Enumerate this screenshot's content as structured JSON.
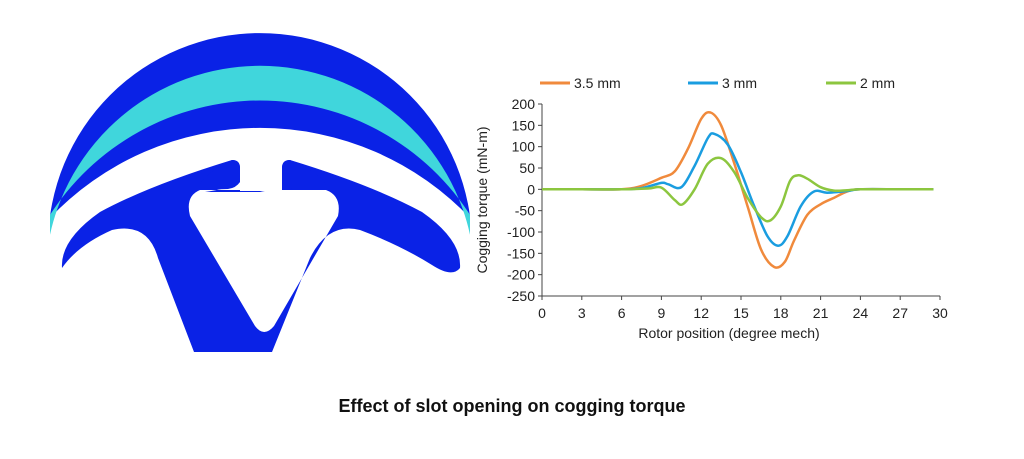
{
  "caption": "Effect of slot opening on cogging torque",
  "colors": {
    "stator": "#0a22e6",
    "magnet": "#40d6dc"
  },
  "chart_data": {
    "type": "line",
    "xlabel": "Rotor position (degree mech)",
    "ylabel": "Cogging torque (mN-m)",
    "xlim": [
      0,
      30
    ],
    "ylim": [
      -250,
      200
    ],
    "xticks": [
      0,
      3,
      6,
      9,
      12,
      15,
      18,
      21,
      24,
      27,
      30
    ],
    "yticks": [
      200,
      150,
      100,
      50,
      0,
      -50,
      -100,
      -150,
      -200,
      -250
    ],
    "legend_position": "top",
    "grid": false,
    "series": [
      {
        "name": "3.5 mm",
        "color": "#f08a3c",
        "points": [
          [
            0,
            0
          ],
          [
            3,
            0
          ],
          [
            6,
            0
          ],
          [
            7.5,
            8
          ],
          [
            9,
            27
          ],
          [
            10,
            42
          ],
          [
            11,
            95
          ],
          [
            12,
            165
          ],
          [
            12.7,
            180
          ],
          [
            13.5,
            150
          ],
          [
            14.5,
            60
          ],
          [
            15.5,
            -40
          ],
          [
            16.5,
            -140
          ],
          [
            17.5,
            -182
          ],
          [
            18.3,
            -170
          ],
          [
            19,
            -120
          ],
          [
            20,
            -60
          ],
          [
            21,
            -35
          ],
          [
            22,
            -20
          ],
          [
            23,
            -5
          ],
          [
            24,
            0
          ],
          [
            27,
            0
          ],
          [
            29.5,
            0
          ]
        ]
      },
      {
        "name": "3 mm",
        "color": "#1a9de0",
        "points": [
          [
            0,
            0
          ],
          [
            3,
            0
          ],
          [
            6,
            0
          ],
          [
            7.5,
            3
          ],
          [
            9,
            15
          ],
          [
            9.5,
            12
          ],
          [
            10.5,
            5
          ],
          [
            11.5,
            55
          ],
          [
            12.5,
            120
          ],
          [
            13,
            130
          ],
          [
            14,
            105
          ],
          [
            15,
            40
          ],
          [
            16,
            -40
          ],
          [
            17,
            -110
          ],
          [
            17.8,
            -132
          ],
          [
            18.5,
            -110
          ],
          [
            19.5,
            -40
          ],
          [
            20.5,
            -5
          ],
          [
            21.5,
            -8
          ],
          [
            23,
            -4
          ],
          [
            24,
            0
          ],
          [
            27,
            0
          ],
          [
            29.5,
            0
          ]
        ]
      },
      {
        "name": "2 mm",
        "color": "#8cc63f",
        "points": [
          [
            0,
            0
          ],
          [
            3,
            0
          ],
          [
            6,
            0
          ],
          [
            8,
            2
          ],
          [
            9,
            4
          ],
          [
            10,
            -25
          ],
          [
            10.6,
            -35
          ],
          [
            11.5,
            0
          ],
          [
            12.5,
            60
          ],
          [
            13.5,
            73
          ],
          [
            14.5,
            40
          ],
          [
            15.5,
            -20
          ],
          [
            16.5,
            -65
          ],
          [
            17.2,
            -73
          ],
          [
            18,
            -40
          ],
          [
            18.7,
            20
          ],
          [
            19.3,
            33
          ],
          [
            20,
            25
          ],
          [
            21,
            5
          ],
          [
            22,
            -3
          ],
          [
            23,
            -2
          ],
          [
            24,
            0
          ],
          [
            27,
            0
          ],
          [
            29.5,
            0
          ]
        ]
      }
    ]
  }
}
